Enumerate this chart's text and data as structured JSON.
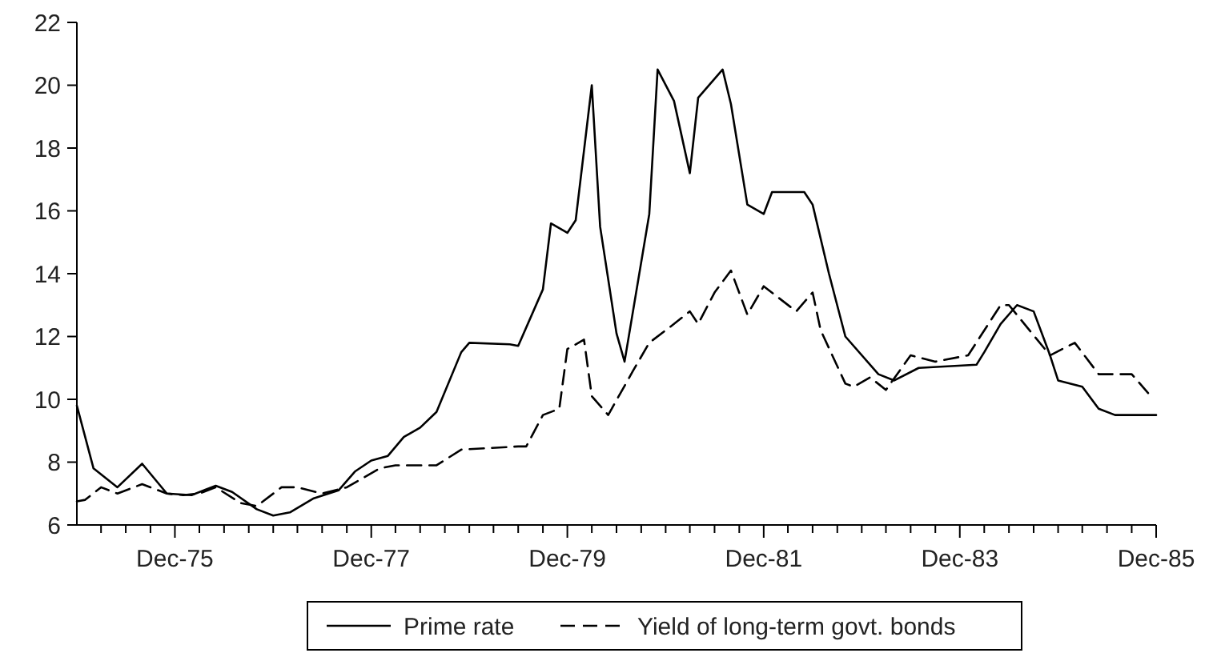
{
  "chart_data": {
    "type": "line",
    "xlim": [
      "1974-12",
      "1985-12"
    ],
    "xticks": [
      {
        "value": "1975-03",
        "label": null
      },
      {
        "value": "1975-06",
        "label": null
      },
      {
        "value": "1975-09",
        "label": null
      },
      {
        "value": "1975-12",
        "label": "Dec-75"
      },
      {
        "value": "1976-03",
        "label": null
      },
      {
        "value": "1976-06",
        "label": null
      },
      {
        "value": "1976-09",
        "label": null
      },
      {
        "value": "1976-12",
        "label": null
      },
      {
        "value": "1977-03",
        "label": null
      },
      {
        "value": "1977-06",
        "label": null
      },
      {
        "value": "1977-09",
        "label": null
      },
      {
        "value": "1977-12",
        "label": "Dec-77"
      },
      {
        "value": "1978-03",
        "label": null
      },
      {
        "value": "1978-06",
        "label": null
      },
      {
        "value": "1978-09",
        "label": null
      },
      {
        "value": "1978-12",
        "label": null
      },
      {
        "value": "1979-03",
        "label": null
      },
      {
        "value": "1979-06",
        "label": null
      },
      {
        "value": "1979-09",
        "label": null
      },
      {
        "value": "1979-12",
        "label": "Dec-79"
      },
      {
        "value": "1980-03",
        "label": null
      },
      {
        "value": "1980-06",
        "label": null
      },
      {
        "value": "1980-09",
        "label": null
      },
      {
        "value": "1980-12",
        "label": null
      },
      {
        "value": "1981-03",
        "label": null
      },
      {
        "value": "1981-06",
        "label": null
      },
      {
        "value": "1981-09",
        "label": null
      },
      {
        "value": "1981-12",
        "label": "Dec-81"
      },
      {
        "value": "1982-03",
        "label": null
      },
      {
        "value": "1982-06",
        "label": null
      },
      {
        "value": "1982-09",
        "label": null
      },
      {
        "value": "1982-12",
        "label": null
      },
      {
        "value": "1983-03",
        "label": null
      },
      {
        "value": "1983-06",
        "label": null
      },
      {
        "value": "1983-09",
        "label": null
      },
      {
        "value": "1983-12",
        "label": "Dec-83"
      },
      {
        "value": "1984-03",
        "label": null
      },
      {
        "value": "1984-06",
        "label": null
      },
      {
        "value": "1984-09",
        "label": null
      },
      {
        "value": "1984-12",
        "label": null
      },
      {
        "value": "1985-03",
        "label": null
      },
      {
        "value": "1985-06",
        "label": null
      },
      {
        "value": "1985-09",
        "label": null
      },
      {
        "value": "1985-12",
        "label": "Dec-85"
      }
    ],
    "ylim": [
      6,
      22
    ],
    "yticks": [
      6,
      8,
      10,
      12,
      14,
      16,
      18,
      20,
      22
    ],
    "grid": false,
    "legend": "bottom",
    "marker": "none",
    "series": [
      {
        "name": "Prime rate",
        "color": "#000000",
        "line_style": "solid",
        "x": [
          "1974-12",
          "1975-02",
          "1975-05",
          "1975-08",
          "1975-11",
          "1976-02",
          "1976-05",
          "1976-07",
          "1976-10",
          "1976-12",
          "1977-02",
          "1977-05",
          "1977-08",
          "1977-10",
          "1977-12",
          "1978-02",
          "1978-04",
          "1978-06",
          "1978-08",
          "1978-11",
          "1978-12",
          "1979-05",
          "1979-06",
          "1979-09",
          "1979-10",
          "1979-12",
          "1980-01",
          "1980-03",
          "1980-04",
          "1980-06",
          "1980-07",
          "1980-10",
          "1980-11",
          "1981-01",
          "1981-03",
          "1981-04",
          "1981-07",
          "1981-08",
          "1981-10",
          "1981-12",
          "1982-01",
          "1982-05",
          "1982-06",
          "1982-08",
          "1982-10",
          "1983-02",
          "1983-04",
          "1983-07",
          "1984-02",
          "1984-03",
          "1984-05",
          "1984-07",
          "1984-09",
          "1984-11",
          "1984-12",
          "1985-03",
          "1985-05",
          "1985-07",
          "1985-12"
        ],
        "values": [
          9.8,
          7.8,
          7.2,
          7.95,
          7.0,
          6.95,
          7.25,
          7.05,
          6.5,
          6.3,
          6.4,
          6.85,
          7.1,
          7.7,
          8.05,
          8.2,
          8.8,
          9.1,
          9.6,
          11.5,
          11.8,
          11.75,
          11.7,
          13.5,
          15.6,
          15.3,
          15.7,
          20.0,
          15.5,
          12.1,
          11.2,
          15.9,
          20.5,
          19.5,
          17.2,
          19.6,
          20.5,
          19.4,
          16.2,
          15.9,
          16.6,
          16.6,
          16.2,
          14.0,
          12.0,
          10.8,
          10.6,
          11.0,
          11.1,
          11.5,
          12.4,
          13.0,
          12.8,
          11.4,
          10.6,
          10.4,
          9.7,
          9.5,
          9.5
        ]
      },
      {
        "name": "Yield of long-term govt. bonds",
        "color": "#000000",
        "line_style": "dashed",
        "x": [
          "1974-12",
          "1975-01",
          "1975-03",
          "1975-05",
          "1975-08",
          "1975-11",
          "1976-01",
          "1976-03",
          "1976-05",
          "1976-08",
          "1976-10",
          "1977-01",
          "1977-03",
          "1977-06",
          "1977-09",
          "1977-11",
          "1978-01",
          "1978-03",
          "1978-08",
          "1978-11",
          "1979-06",
          "1979-07",
          "1979-09",
          "1979-11",
          "1979-12",
          "1980-02",
          "1980-03",
          "1980-05",
          "1980-08",
          "1980-10",
          "1981-01",
          "1981-03",
          "1981-04",
          "1981-06",
          "1981-08",
          "1981-10",
          "1981-12",
          "1982-04",
          "1982-06",
          "1982-07",
          "1982-10",
          "1982-11",
          "1983-01",
          "1983-03",
          "1983-06",
          "1983-09",
          "1984-01",
          "1984-05",
          "1984-06",
          "1984-11",
          "1985-02",
          "1985-05",
          "1985-09",
          "1985-11"
        ],
        "values": [
          6.75,
          6.8,
          7.2,
          7.0,
          7.3,
          7.0,
          6.95,
          7.0,
          7.2,
          6.7,
          6.6,
          7.2,
          7.2,
          7.0,
          7.2,
          7.5,
          7.8,
          7.9,
          7.9,
          8.4,
          8.5,
          8.5,
          9.5,
          9.7,
          11.6,
          11.9,
          10.1,
          9.5,
          10.9,
          11.8,
          12.4,
          12.8,
          12.4,
          13.4,
          14.1,
          12.7,
          13.6,
          12.8,
          13.4,
          12.2,
          10.5,
          10.4,
          10.7,
          10.3,
          11.4,
          11.2,
          11.4,
          13.0,
          13.0,
          11.4,
          11.8,
          10.8,
          10.8,
          10.2
        ]
      }
    ]
  }
}
